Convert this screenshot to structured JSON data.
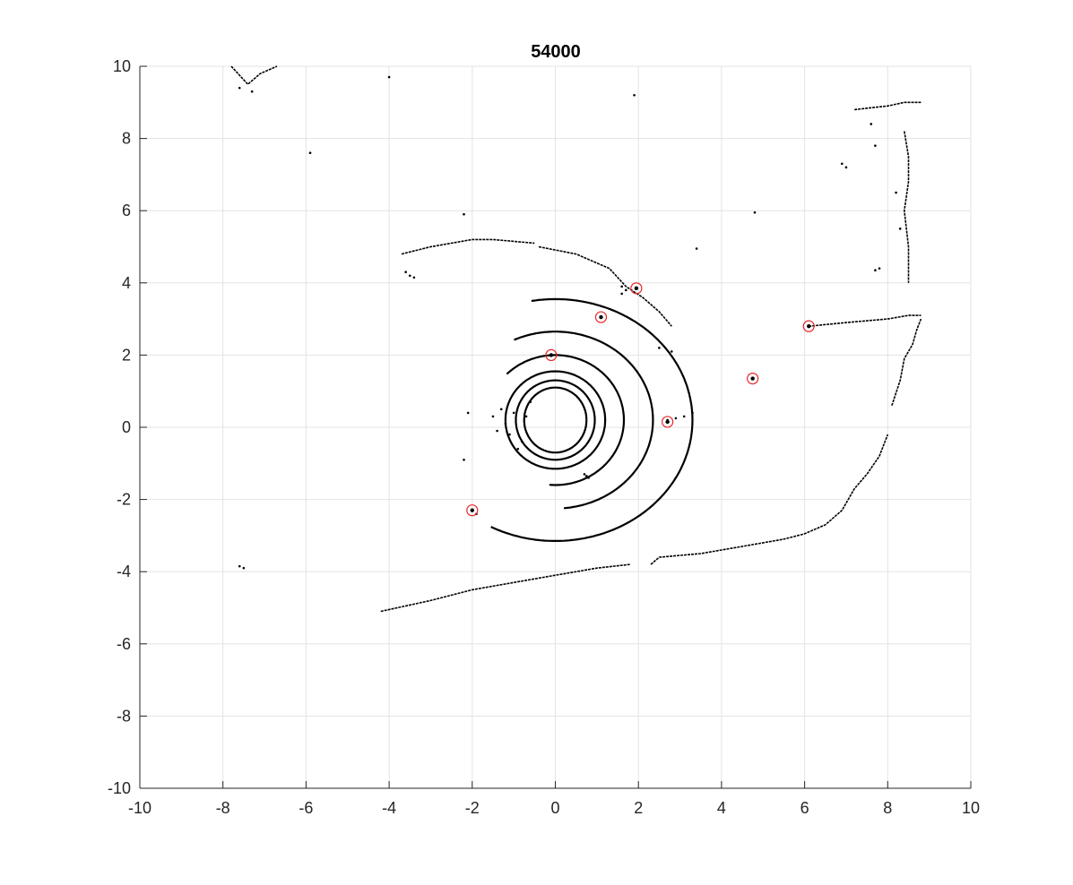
{
  "chart_data": {
    "type": "scatter",
    "title": "54000",
    "xlabel": "",
    "ylabel": "",
    "xlim": [
      -10,
      10
    ],
    "ylim": [
      -10,
      10
    ],
    "xticks": [
      -10,
      -8,
      -6,
      -4,
      -2,
      0,
      2,
      4,
      6,
      8,
      10
    ],
    "yticks": [
      -10,
      -8,
      -6,
      -4,
      -2,
      0,
      2,
      4,
      6,
      8,
      10
    ],
    "grid": true,
    "colors": {
      "points": "#000000",
      "markers": "#e8262a",
      "grid": "#e3e3e3",
      "axis": "#262626"
    },
    "series": [
      {
        "marker": "point",
        "rings_center": [
          0,
          0.2
        ],
        "rings": [
          {
            "rx": 0.75,
            "ry": 0.9,
            "start": 0,
            "end": 360
          },
          {
            "rx": 0.95,
            "ry": 1.1,
            "start": 0,
            "end": 360
          },
          {
            "rx": 1.2,
            "ry": 1.35,
            "start": 0,
            "end": 360
          },
          {
            "rx": 1.65,
            "ry": 1.8,
            "start": -95,
            "end": 135
          },
          {
            "rx": 2.35,
            "ry": 2.45,
            "start": -85,
            "end": 115
          },
          {
            "rx": 3.3,
            "ry": 3.35,
            "start": -118,
            "end": 100
          }
        ],
        "polylines": [
          [
            [
              -4.2,
              -5.1
            ],
            [
              -3.0,
              -4.8
            ],
            [
              -2.0,
              -4.5
            ],
            [
              -1.0,
              -4.3
            ],
            [
              0,
              -4.1
            ],
            [
              1.0,
              -3.9
            ],
            [
              1.8,
              -3.8
            ]
          ],
          [
            [
              2.3,
              -3.8
            ],
            [
              2.5,
              -3.6
            ],
            [
              3.5,
              -3.5
            ],
            [
              4.5,
              -3.3
            ],
            [
              5.5,
              -3.1
            ],
            [
              6.0,
              -2.95
            ],
            [
              6.5,
              -2.7
            ],
            [
              6.9,
              -2.3
            ],
            [
              7.2,
              -1.7
            ],
            [
              7.5,
              -1.3
            ],
            [
              7.8,
              -0.8
            ],
            [
              8.0,
              -0.2
            ]
          ],
          [
            [
              8.1,
              0.6
            ],
            [
              8.3,
              1.3
            ],
            [
              8.4,
              1.9
            ],
            [
              8.6,
              2.3
            ],
            [
              8.7,
              2.7
            ],
            [
              8.8,
              3.0
            ]
          ],
          [
            [
              6.1,
              2.8
            ],
            [
              7.0,
              2.9
            ],
            [
              8.0,
              3.0
            ],
            [
              8.5,
              3.1
            ],
            [
              8.8,
              3.1
            ]
          ],
          [
            [
              7.2,
              8.8
            ],
            [
              7.6,
              8.85
            ],
            [
              8.0,
              8.9
            ],
            [
              8.4,
              9.0
            ],
            [
              8.8,
              9.0
            ]
          ],
          [
            [
              8.4,
              8.2
            ],
            [
              8.5,
              7.5
            ],
            [
              8.5,
              6.8
            ],
            [
              8.4,
              6.0
            ],
            [
              8.5,
              5.0
            ],
            [
              8.5,
              4.0
            ]
          ],
          [
            [
              -3.7,
              4.8
            ],
            [
              -3.0,
              5.0
            ],
            [
              -2.0,
              5.2
            ],
            [
              -1.5,
              5.2
            ],
            [
              -0.5,
              5.1
            ]
          ],
          [
            [
              -0.4,
              5.0
            ],
            [
              0.5,
              4.8
            ],
            [
              1.3,
              4.4
            ],
            [
              1.7,
              3.9
            ],
            [
              2.1,
              3.6
            ],
            [
              2.5,
              3.2
            ],
            [
              2.8,
              2.8
            ]
          ],
          [
            [
              -7.8,
              10
            ],
            [
              -7.4,
              9.5
            ],
            [
              -7.1,
              9.8
            ],
            [
              -6.7,
              10
            ]
          ]
        ],
        "scatter": [
          [
            -7.6,
            9.4
          ],
          [
            -7.3,
            9.3
          ],
          [
            -4.0,
            9.7
          ],
          [
            1.9,
            9.2
          ],
          [
            -5.9,
            7.6
          ],
          [
            -2.2,
            5.9
          ],
          [
            4.8,
            5.95
          ],
          [
            3.4,
            4.95
          ],
          [
            -3.6,
            4.3
          ],
          [
            -3.5,
            4.2
          ],
          [
            -3.4,
            4.15
          ],
          [
            1.6,
            3.9
          ],
          [
            1.7,
            3.8
          ],
          [
            1.6,
            3.7
          ],
          [
            -2.0,
            -2.3
          ],
          [
            -1.9,
            -2.4
          ],
          [
            6.9,
            7.3
          ],
          [
            7.0,
            7.2
          ],
          [
            7.7,
            7.8
          ],
          [
            7.6,
            8.4
          ],
          [
            7.8,
            4.4
          ],
          [
            7.7,
            4.35
          ],
          [
            8.2,
            6.5
          ],
          [
            8.3,
            5.5
          ],
          [
            -7.6,
            -3.85
          ],
          [
            -7.5,
            -3.9
          ],
          [
            2.5,
            2.2
          ],
          [
            2.8,
            2.1
          ],
          [
            2.7,
            0.2
          ],
          [
            2.9,
            0.25
          ],
          [
            3.1,
            0.3
          ],
          [
            3.3,
            0.4
          ],
          [
            -1.3,
            0.5
          ],
          [
            -1.2,
            0.1
          ],
          [
            -1.1,
            -0.2
          ],
          [
            -1.0,
            0.4
          ],
          [
            -0.8,
            -0.4
          ],
          [
            -0.7,
            0.3
          ],
          [
            -0.6,
            0.7
          ],
          [
            -0.9,
            -0.6
          ],
          [
            -1.5,
            0.3
          ],
          [
            -1.4,
            -0.1
          ],
          [
            -2.2,
            -0.9
          ],
          [
            -2.1,
            0.4
          ],
          [
            0.7,
            -1.3
          ],
          [
            0.8,
            -1.4
          ],
          [
            0.75,
            -1.35
          ]
        ]
      },
      {
        "marker": "circle",
        "points": [
          [
            1.95,
            3.85
          ],
          [
            1.1,
            3.05
          ],
          [
            -0.1,
            2.0
          ],
          [
            6.1,
            2.8
          ],
          [
            4.75,
            1.35
          ],
          [
            2.7,
            0.15
          ],
          [
            -2.0,
            -2.3
          ]
        ]
      }
    ]
  }
}
